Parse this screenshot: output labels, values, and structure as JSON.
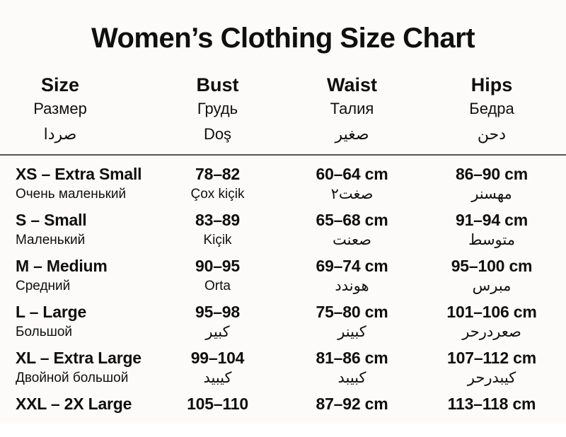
{
  "chart_data": {
    "type": "table",
    "title": "Women’s Clothing Size Chart",
    "columns": [
      {
        "line1": "Size",
        "line2": "Размер",
        "line3": "صردا"
      },
      {
        "line1": "Bust",
        "line2": "Грудь",
        "line3": "Doş"
      },
      {
        "line1": "Waist",
        "line2": "Талия",
        "line3": "صغير"
      },
      {
        "line1": "Hips",
        "line2": "Бедра",
        "line3": "دحن"
      }
    ],
    "rows": [
      {
        "size": {
          "main": "XS – Extra Small",
          "sub": "Очень маленький"
        },
        "bust": {
          "main": "78–82",
          "sub": "Çox kiçik"
        },
        "waist": {
          "main": "60–64 cm",
          "sub": "صغت٢"
        },
        "hips": {
          "main": "86–90 cm",
          "sub": "مهسنر"
        }
      },
      {
        "size": {
          "main": "S – Small",
          "sub": "Маленький"
        },
        "bust": {
          "main": "83–89",
          "sub": "Kiçik"
        },
        "waist": {
          "main": "65–68 cm",
          "sub": "صعنت"
        },
        "hips": {
          "main": "91–94 cm",
          "sub": "متوسط"
        }
      },
      {
        "size": {
          "main": "M – Medium",
          "sub": "Средний"
        },
        "bust": {
          "main": "90–95",
          "sub": "Orta"
        },
        "waist": {
          "main": "69–74 cm",
          "sub": "هوندد"
        },
        "hips": {
          "main": "95–100 cm",
          "sub": "مبرس"
        }
      },
      {
        "size": {
          "main": "L – Large",
          "sub": "Большой"
        },
        "bust": {
          "main": "95–98",
          "sub": "كبير"
        },
        "waist": {
          "main": "75–80 cm",
          "sub": "كبينر"
        },
        "hips": {
          "main": "101–106 cm",
          "sub": "صعردرحر"
        }
      },
      {
        "size": {
          "main": "XL – Extra Large",
          "sub": "Двойной большой"
        },
        "bust": {
          "main": "99–104",
          "sub": "كيبيد"
        },
        "waist": {
          "main": "81–86 cm",
          "sub": "كبيبد"
        },
        "hips": {
          "main": "107–112 cm",
          "sub": "كيبدرحر"
        }
      },
      {
        "size": {
          "main": "XXL – 2X Large",
          "sub": ""
        },
        "bust": {
          "main": "105–110",
          "sub": ""
        },
        "waist": {
          "main": "87–92 cm",
          "sub": ""
        },
        "hips": {
          "main": "113–118 cm",
          "sub": ""
        }
      }
    ]
  },
  "colors": {
    "background": "#fbfaf8",
    "text": "#0f0f0f",
    "divider": "#555555"
  }
}
